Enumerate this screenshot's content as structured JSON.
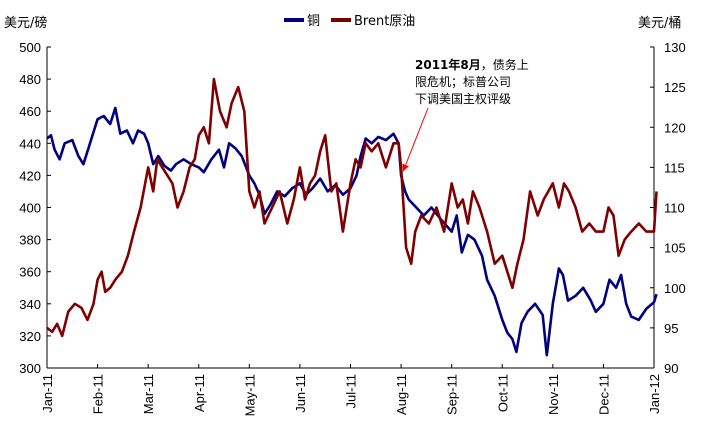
{
  "chart_data": {
    "type": "line",
    "title": "",
    "left_axis_unit": "美元/磅",
    "right_axis_unit": "美元/桶",
    "ylim_left": [
      300,
      500
    ],
    "yticks_left": [
      "300",
      "320",
      "340",
      "360",
      "380",
      "400",
      "420",
      "440",
      "460",
      "480",
      "500"
    ],
    "ylim_right": [
      90,
      130
    ],
    "yticks_right": [
      "90",
      "95",
      "100",
      "105",
      "110",
      "115",
      "120",
      "125",
      "130"
    ],
    "x_tick_labels": [
      "Jan-11",
      "Feb-11",
      "Mar-11",
      "Apr-11",
      "May-11",
      "Jun-11",
      "Jul-11",
      "Aug-11",
      "Sep-11",
      "Oct-11",
      "Nov-11",
      "Dec-11",
      "Jan-12"
    ],
    "legend_position": "top-center",
    "grid": false,
    "series": [
      {
        "name": "铜",
        "axis": "left",
        "color": "#000080",
        "points": [
          [
            0,
            443
          ],
          [
            0.08,
            445
          ],
          [
            0.15,
            436
          ],
          [
            0.25,
            430
          ],
          [
            0.35,
            440
          ],
          [
            0.5,
            442
          ],
          [
            0.62,
            432
          ],
          [
            0.72,
            427
          ],
          [
            0.82,
            437
          ],
          [
            0.92,
            447
          ],
          [
            1.0,
            455
          ],
          [
            1.12,
            457
          ],
          [
            1.25,
            452
          ],
          [
            1.35,
            462
          ],
          [
            1.45,
            446
          ],
          [
            1.58,
            448
          ],
          [
            1.7,
            440
          ],
          [
            1.8,
            448
          ],
          [
            1.92,
            446
          ],
          [
            2.0,
            440
          ],
          [
            2.1,
            427
          ],
          [
            2.2,
            432
          ],
          [
            2.32,
            426
          ],
          [
            2.45,
            423
          ],
          [
            2.55,
            427
          ],
          [
            2.7,
            430
          ],
          [
            2.85,
            427
          ],
          [
            3.0,
            425
          ],
          [
            3.1,
            422
          ],
          [
            3.25,
            430
          ],
          [
            3.4,
            436
          ],
          [
            3.5,
            425
          ],
          [
            3.6,
            440
          ],
          [
            3.72,
            437
          ],
          [
            3.85,
            432
          ],
          [
            4.0,
            420
          ],
          [
            4.1,
            415
          ],
          [
            4.2,
            408
          ],
          [
            4.3,
            396
          ],
          [
            4.42,
            402
          ],
          [
            4.55,
            410
          ],
          [
            4.7,
            407
          ],
          [
            4.85,
            412
          ],
          [
            5.0,
            415
          ],
          [
            5.12,
            408
          ],
          [
            5.25,
            412
          ],
          [
            5.4,
            418
          ],
          [
            5.55,
            410
          ],
          [
            5.7,
            414
          ],
          [
            5.85,
            408
          ],
          [
            6.0,
            412
          ],
          [
            6.12,
            420
          ],
          [
            6.2,
            432
          ],
          [
            6.3,
            443
          ],
          [
            6.42,
            440
          ],
          [
            6.55,
            444
          ],
          [
            6.7,
            442
          ],
          [
            6.85,
            446
          ],
          [
            6.95,
            440
          ],
          [
            7.0,
            420
          ],
          [
            7.08,
            410
          ],
          [
            7.15,
            405
          ],
          [
            7.3,
            400
          ],
          [
            7.45,
            395
          ],
          [
            7.6,
            400
          ],
          [
            7.8,
            392
          ],
          [
            8.0,
            385
          ],
          [
            8.1,
            395
          ],
          [
            8.2,
            372
          ],
          [
            8.32,
            383
          ],
          [
            8.45,
            380
          ],
          [
            8.6,
            370
          ],
          [
            8.7,
            355
          ],
          [
            8.85,
            345
          ],
          [
            9.0,
            330
          ],
          [
            9.1,
            322
          ],
          [
            9.2,
            318
          ],
          [
            9.28,
            310
          ],
          [
            9.38,
            328
          ],
          [
            9.5,
            335
          ],
          [
            9.65,
            340
          ],
          [
            9.8,
            333
          ],
          [
            9.88,
            308
          ],
          [
            10.0,
            340
          ],
          [
            10.12,
            362
          ],
          [
            10.2,
            358
          ],
          [
            10.3,
            342
          ],
          [
            10.45,
            345
          ],
          [
            10.6,
            350
          ],
          [
            10.75,
            342
          ],
          [
            10.85,
            335
          ],
          [
            11.0,
            340
          ],
          [
            11.12,
            355
          ],
          [
            11.25,
            350
          ],
          [
            11.35,
            358
          ],
          [
            11.45,
            340
          ],
          [
            11.55,
            332
          ],
          [
            11.7,
            330
          ],
          [
            11.85,
            337
          ],
          [
            12.0,
            341
          ],
          [
            12.05,
            346
          ]
        ]
      },
      {
        "name": "Brent原油",
        "axis": "right",
        "color": "#7F0000",
        "points": [
          [
            0,
            95
          ],
          [
            0.1,
            94.5
          ],
          [
            0.2,
            95.5
          ],
          [
            0.3,
            94
          ],
          [
            0.42,
            97
          ],
          [
            0.55,
            98
          ],
          [
            0.68,
            97.5
          ],
          [
            0.8,
            96
          ],
          [
            0.92,
            98
          ],
          [
            1.0,
            101
          ],
          [
            1.08,
            102
          ],
          [
            1.15,
            99.5
          ],
          [
            1.25,
            100
          ],
          [
            1.35,
            101
          ],
          [
            1.48,
            102
          ],
          [
            1.6,
            104
          ],
          [
            1.72,
            107
          ],
          [
            1.85,
            110
          ],
          [
            2.0,
            115
          ],
          [
            2.1,
            112
          ],
          [
            2.18,
            116
          ],
          [
            2.28,
            115
          ],
          [
            2.38,
            114
          ],
          [
            2.48,
            113
          ],
          [
            2.58,
            110
          ],
          [
            2.7,
            112
          ],
          [
            2.82,
            115
          ],
          [
            2.92,
            116
          ],
          [
            3.0,
            119
          ],
          [
            3.1,
            120
          ],
          [
            3.2,
            118
          ],
          [
            3.3,
            126
          ],
          [
            3.42,
            122
          ],
          [
            3.55,
            120
          ],
          [
            3.65,
            123
          ],
          [
            3.78,
            125
          ],
          [
            3.9,
            122
          ],
          [
            4.0,
            112
          ],
          [
            4.1,
            110
          ],
          [
            4.2,
            112
          ],
          [
            4.3,
            108
          ],
          [
            4.45,
            110
          ],
          [
            4.6,
            112
          ],
          [
            4.75,
            108
          ],
          [
            4.88,
            111
          ],
          [
            5.0,
            115
          ],
          [
            5.1,
            111
          ],
          [
            5.2,
            113
          ],
          [
            5.3,
            114
          ],
          [
            5.4,
            117
          ],
          [
            5.5,
            119
          ],
          [
            5.62,
            112
          ],
          [
            5.72,
            113
          ],
          [
            5.85,
            107
          ],
          [
            6.0,
            113
          ],
          [
            6.1,
            116
          ],
          [
            6.2,
            115
          ],
          [
            6.3,
            118
          ],
          [
            6.42,
            117
          ],
          [
            6.55,
            118
          ],
          [
            6.7,
            115
          ],
          [
            6.85,
            118
          ],
          [
            6.95,
            118
          ],
          [
            7.0,
            115
          ],
          [
            7.1,
            105
          ],
          [
            7.2,
            103
          ],
          [
            7.28,
            107
          ],
          [
            7.4,
            109
          ],
          [
            7.55,
            108
          ],
          [
            7.7,
            110
          ],
          [
            7.85,
            107
          ],
          [
            8.0,
            113
          ],
          [
            8.12,
            110
          ],
          [
            8.22,
            111
          ],
          [
            8.32,
            108
          ],
          [
            8.42,
            112
          ],
          [
            8.55,
            110
          ],
          [
            8.7,
            107
          ],
          [
            8.85,
            103
          ],
          [
            9.0,
            104
          ],
          [
            9.1,
            102
          ],
          [
            9.2,
            100
          ],
          [
            9.3,
            103
          ],
          [
            9.42,
            106
          ],
          [
            9.55,
            112
          ],
          [
            9.7,
            109
          ],
          [
            9.82,
            111
          ],
          [
            10.0,
            113
          ],
          [
            10.12,
            110
          ],
          [
            10.22,
            113
          ],
          [
            10.32,
            112
          ],
          [
            10.45,
            110
          ],
          [
            10.58,
            107
          ],
          [
            10.72,
            108
          ],
          [
            10.85,
            107
          ],
          [
            11.0,
            107
          ],
          [
            11.1,
            110
          ],
          [
            11.2,
            109
          ],
          [
            11.3,
            104
          ],
          [
            11.42,
            106
          ],
          [
            11.55,
            107
          ],
          [
            11.7,
            108
          ],
          [
            11.85,
            107
          ],
          [
            12.0,
            107
          ],
          [
            12.05,
            112
          ]
        ]
      }
    ],
    "annotation": {
      "line1_bold": "2011年8月",
      "line1_rest": "，债务上",
      "line2": "限危机；标普公司",
      "line3": "下调美国主权评级",
      "arrow_target_x": 7.0,
      "arrow_target_y_left": 420
    }
  }
}
